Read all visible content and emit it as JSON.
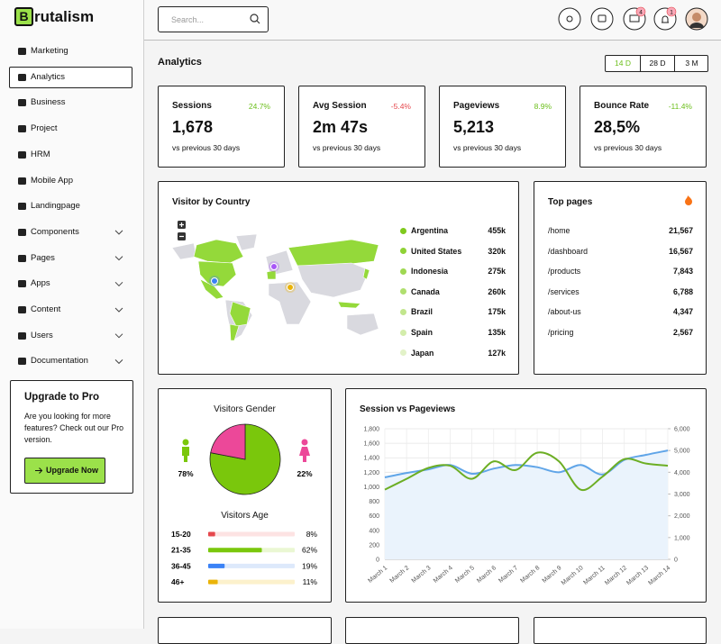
{
  "sidebar": {
    "logo_letter": "B",
    "logo_text": "rutalism",
    "nav": [
      {
        "label": "Marketing"
      },
      {
        "label": "Analytics",
        "active": true
      },
      {
        "label": "Business"
      },
      {
        "label": "Project"
      },
      {
        "label": "HRM"
      },
      {
        "label": "Mobile App"
      },
      {
        "label": "Landingpage"
      },
      {
        "label": "Components",
        "submenu": true
      },
      {
        "label": "Pages",
        "submenu": true
      },
      {
        "label": "Apps",
        "submenu": true
      },
      {
        "label": "Content",
        "submenu": true
      },
      {
        "label": "Users",
        "submenu": true
      },
      {
        "label": "Documentation",
        "submenu": true
      }
    ],
    "upgrade": {
      "title": "Upgrade to Pro",
      "text": "Are you looking for more features? Check out our Pro version.",
      "button": "Upgrade Now"
    }
  },
  "header": {
    "search_placeholder": "Search...",
    "badges": [
      4,
      1
    ]
  },
  "page_title": "Analytics",
  "ranges": [
    "14 D",
    "28 D",
    "3 M"
  ],
  "active_range": 0,
  "stats": [
    {
      "label": "Sessions",
      "change": "24.7%",
      "change_color": "#6cbf1c",
      "value": "1,678",
      "note": "vs previous 30 days"
    },
    {
      "label": "Avg Session",
      "change": "-5.4%",
      "change_color": "#e5484d",
      "value": "2m 47s",
      "note": "vs previous 30 days"
    },
    {
      "label": "Pageviews",
      "change": "8.9%",
      "change_color": "#6cbf1c",
      "value": "5,213",
      "note": "vs previous 30 days"
    },
    {
      "label": "Bounce Rate",
      "change": "-11.4%",
      "change_color": "#6cbf1c",
      "value": "28,5%",
      "note": "vs previous 30 days"
    }
  ],
  "visitor_by_country": {
    "title": "Visitor by Country",
    "countries": [
      {
        "name": "Argentina",
        "value": "455k",
        "color": "#7fc91d"
      },
      {
        "name": "United States",
        "value": "320k",
        "color": "#8fd236"
      },
      {
        "name": "Indonesia",
        "value": "275k",
        "color": "#9fd852"
      },
      {
        "name": "Canada",
        "value": "260k",
        "color": "#b0df6f"
      },
      {
        "name": "Brazil",
        "value": "175k",
        "color": "#c2e68d"
      },
      {
        "name": "Spain",
        "value": "135k",
        "color": "#d3edab"
      },
      {
        "name": "Japan",
        "value": "127k",
        "color": "#e2f2c8"
      }
    ]
  },
  "top_pages": {
    "title": "Top pages",
    "rows": [
      {
        "page": "/home",
        "value": "21,567"
      },
      {
        "page": "/dashboard",
        "value": "16,567"
      },
      {
        "page": "/products",
        "value": "7,843"
      },
      {
        "page": "/services",
        "value": "6,788"
      },
      {
        "page": "/about-us",
        "value": "4,347"
      },
      {
        "page": "/pricing",
        "value": "2,567"
      }
    ]
  },
  "visitors_gender": {
    "title": "Visitors Gender",
    "values": [
      78,
      22
    ],
    "value_labels": [
      "78%",
      "22%"
    ],
    "colors": [
      "#7ac70c",
      "#ec4899"
    ]
  },
  "visitors_age": {
    "title": "Visitors Age",
    "groups": [
      "15-20",
      "21-35",
      "36-45",
      "46+"
    ],
    "values": [
      8,
      62,
      19,
      11
    ],
    "value_labels": [
      "8%",
      "62%",
      "19%",
      "11%"
    ],
    "colors": [
      "#e5484d",
      "#7ac70c",
      "#3b82f6",
      "#eab308"
    ],
    "track_colors": [
      "#fde3e3",
      "#eaf7d3",
      "#dde9fb",
      "#fcf1cc"
    ]
  },
  "chart_data": {
    "type": "line",
    "title": "Session vs Pageviews",
    "categories": [
      "March 1",
      "March 2",
      "March 3",
      "March 4",
      "March 5",
      "March 6",
      "March 7",
      "March 8",
      "March 9",
      "March 10",
      "March 11",
      "March 12",
      "March 13",
      "March 14"
    ],
    "series": [
      {
        "color": "#60a5e8",
        "fill": "#eaf3fc",
        "values": [
          1130,
          1190,
          1240,
          1300,
          1180,
          1250,
          1300,
          1270,
          1200,
          1300,
          1170,
          1370,
          1440,
          1500
        ]
      },
      {
        "color": "#6cae24",
        "axis": "y2",
        "values": [
          3200,
          3700,
          4200,
          4300,
          3700,
          4500,
          4100,
          4900,
          4500,
          3200,
          3800,
          4600,
          4400,
          4300
        ]
      }
    ],
    "ylim": [
      0,
      1800
    ],
    "yticks": [
      0,
      200,
      400,
      600,
      800,
      {
        "value": 1000,
        "label": "1,000"
      },
      {
        "value": 1200,
        "label": "1,200"
      },
      {
        "value": 1400,
        "label": "1,400"
      },
      {
        "value": 1600,
        "label": "1,600"
      },
      {
        "value": 1800,
        "label": "1,800"
      }
    ],
    "y2lim": [
      0,
      6000
    ],
    "y2ticks": [
      0,
      {
        "value": 1000,
        "label": "1,000"
      },
      {
        "value": 2000,
        "label": "2,000"
      },
      {
        "value": 3000,
        "label": "3,000"
      },
      {
        "value": 4000,
        "label": "4,000"
      },
      {
        "value": 5000,
        "label": "5,000"
      },
      {
        "value": 6000,
        "label": "6,000"
      }
    ],
    "grid": true
  }
}
